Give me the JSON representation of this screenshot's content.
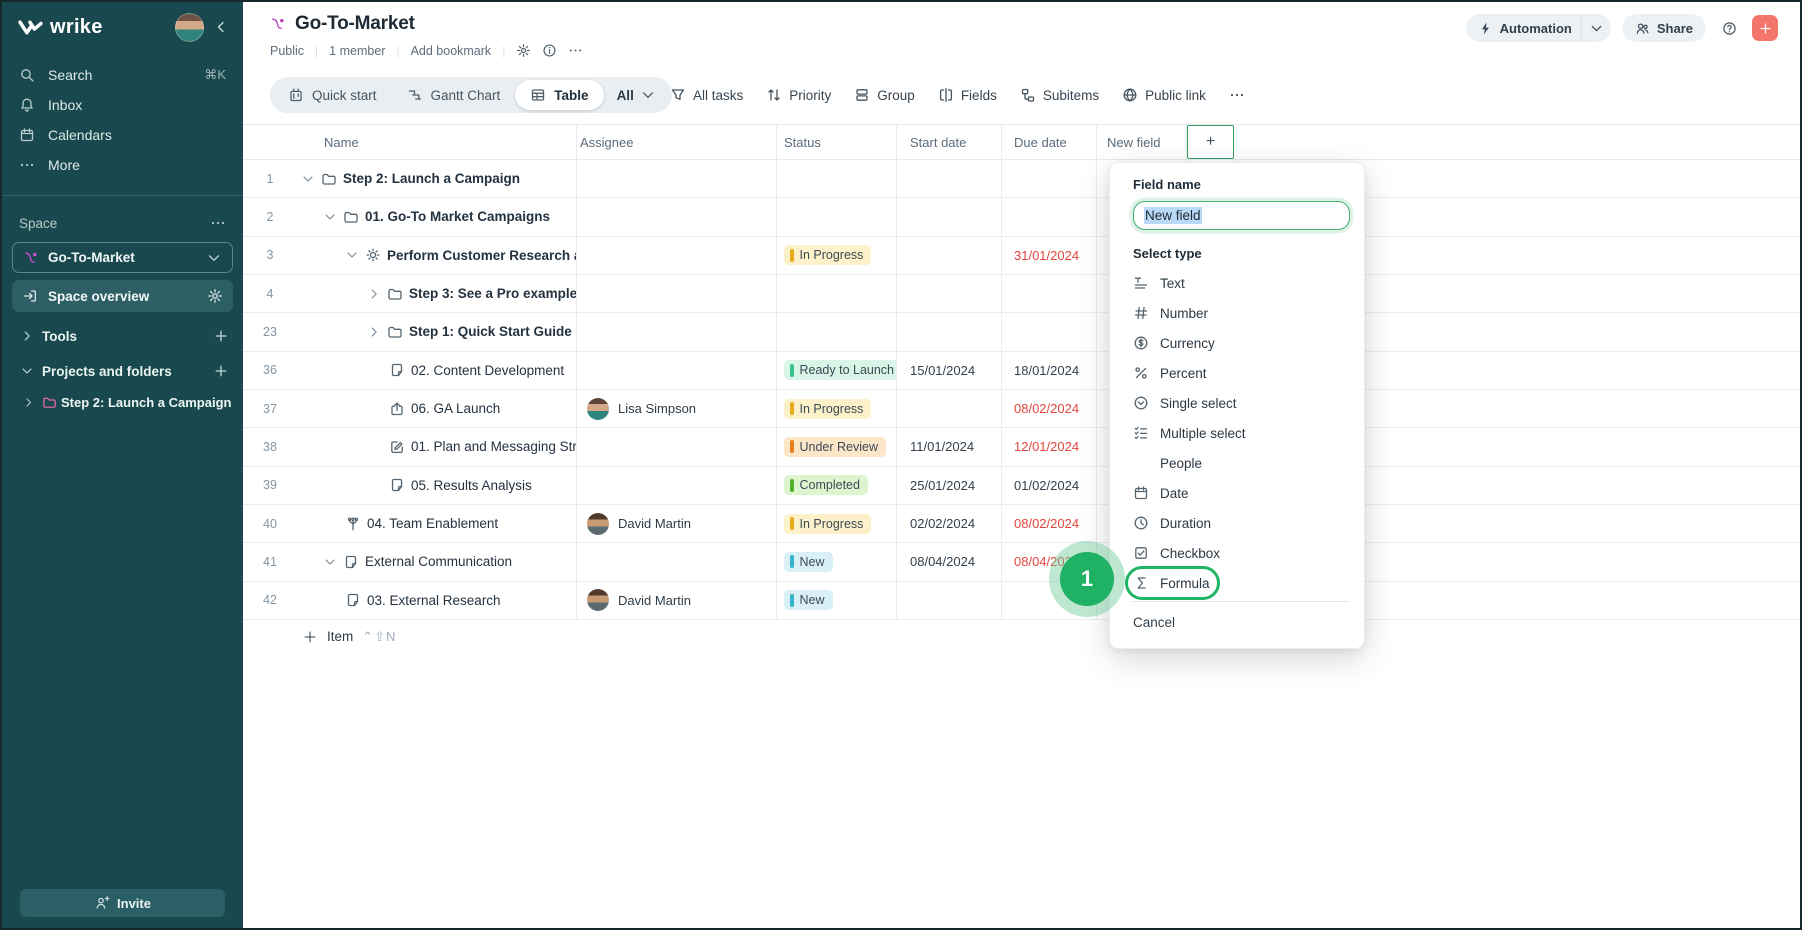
{
  "app": {
    "brand": "wrike",
    "collapse_icon": "chevL"
  },
  "sidebar": {
    "nav": [
      {
        "icon": "search",
        "label": "Search",
        "shortcut": "⌘K"
      },
      {
        "icon": "bell",
        "label": "Inbox",
        "shortcut": ""
      },
      {
        "icon": "calendar",
        "label": "Calendars",
        "shortcut": ""
      },
      {
        "icon": "dots",
        "label": "More",
        "shortcut": ""
      }
    ],
    "space_label": "Space",
    "space_name": "Go-To-Market",
    "overview_label": "Space overview",
    "tools_label": "Tools",
    "projects_label": "Projects and folders",
    "project_label": "Step 2: Launch a Campaign",
    "invite_label": "Invite"
  },
  "header": {
    "title": "Go-To-Market",
    "meta": [
      "Public",
      "1 member",
      "Add bookmark"
    ],
    "automation_label": "Automation",
    "share_label": "Share"
  },
  "toolbar": {
    "views": [
      {
        "icon": "board",
        "label": "Quick start",
        "selected": false
      },
      {
        "icon": "gantt",
        "label": "Gantt Chart",
        "selected": false
      },
      {
        "icon": "tablegrid",
        "label": "Table",
        "selected": true
      }
    ],
    "filter_selector": "All",
    "actions": [
      {
        "icon": "funnel",
        "label": "All tasks"
      },
      {
        "icon": "sort",
        "label": "Priority"
      },
      {
        "icon": "group",
        "label": "Group"
      },
      {
        "icon": "fields",
        "label": "Fields"
      },
      {
        "icon": "subitems",
        "label": "Subitems"
      },
      {
        "icon": "globe",
        "label": "Public link"
      },
      {
        "icon": "dots",
        "label": ""
      }
    ]
  },
  "table": {
    "columns": [
      "Name",
      "Assignee",
      "Status",
      "Start date",
      "Due date",
      "New field"
    ],
    "add_column_label": "+",
    "add_item_label": "Item",
    "add_item_shortcut": "⌃⇧N",
    "rows": [
      {
        "num": "1",
        "indent": 0,
        "chevron": "down",
        "icon": "folder",
        "name": "Step 2: Launch a Campaign",
        "bold": true,
        "assignee": "",
        "avatar": "",
        "status": "",
        "status_key": "",
        "start": "",
        "due": "",
        "due_overdue": false
      },
      {
        "num": "2",
        "indent": 1,
        "chevron": "down",
        "icon": "folder",
        "name": "01. Go-To Market Campaigns",
        "bold": true,
        "assignee": "",
        "avatar": "",
        "status": "",
        "status_key": "",
        "start": "",
        "due": "",
        "due_overdue": false
      },
      {
        "num": "3",
        "indent": 2,
        "chevron": "down",
        "icon": "sun",
        "name": "Perform Customer Research a",
        "bold": true,
        "assignee": "",
        "avatar": "",
        "status": "In Progress",
        "status_key": "in_progress",
        "start": "",
        "due": "31/01/2024",
        "due_overdue": true
      },
      {
        "num": "4",
        "indent": 3,
        "chevron": "right",
        "icon": "folder",
        "name": "Step 3: See a Pro example",
        "bold": true,
        "assignee": "",
        "avatar": "",
        "status": "",
        "status_key": "",
        "start": "",
        "due": "",
        "due_overdue": false
      },
      {
        "num": "23",
        "indent": 3,
        "chevron": "right",
        "icon": "folder",
        "name": "Step 1: Quick Start Guide",
        "bold": true,
        "assignee": "",
        "avatar": "",
        "status": "",
        "status_key": "",
        "start": "",
        "due": "",
        "due_overdue": false
      },
      {
        "num": "36",
        "indent": 4,
        "chevron": "",
        "icon": "task",
        "name": "02. Content Development",
        "bold": false,
        "assignee": "",
        "avatar": "",
        "status": "Ready to Launch",
        "status_key": "ready",
        "start": "15/01/2024",
        "due": "18/01/2024",
        "due_overdue": false
      },
      {
        "num": "37",
        "indent": 4,
        "chevron": "",
        "icon": "launch",
        "name": "06. GA Launch",
        "bold": false,
        "assignee": "Lisa Simpson",
        "avatar": "lisa",
        "status": "In Progress",
        "status_key": "in_progress",
        "start": "",
        "due": "08/02/2024",
        "due_overdue": true
      },
      {
        "num": "38",
        "indent": 4,
        "chevron": "",
        "icon": "edit",
        "name": "01. Plan and Messaging Str",
        "bold": false,
        "assignee": "",
        "avatar": "",
        "status": "Under Review",
        "status_key": "review",
        "start": "11/01/2024",
        "due": "12/01/2024",
        "due_overdue": true
      },
      {
        "num": "39",
        "indent": 4,
        "chevron": "",
        "icon": "task",
        "name": "05. Results Analysis",
        "bold": false,
        "assignee": "",
        "avatar": "",
        "status": "Completed",
        "status_key": "completed",
        "start": "25/01/2024",
        "due": "01/02/2024",
        "due_overdue": false
      },
      {
        "num": "40",
        "indent": 2,
        "chevron": "",
        "icon": "hierarchy",
        "name": "04. Team Enablement",
        "bold": false,
        "assignee": "David Martin",
        "avatar": "david",
        "status": "In Progress",
        "status_key": "in_progress",
        "start": "02/02/2024",
        "due": "08/02/2024",
        "due_overdue": true
      },
      {
        "num": "41",
        "indent": 1,
        "chevron": "down",
        "icon": "task",
        "name": "External Communication",
        "bold": false,
        "assignee": "",
        "avatar": "",
        "status": "New",
        "status_key": "new",
        "start": "08/04/2024",
        "due": "08/04/2024",
        "due_overdue": true
      },
      {
        "num": "42",
        "indent": 2,
        "chevron": "",
        "icon": "task",
        "name": "03. External Research",
        "bold": false,
        "assignee": "David Martin",
        "avatar": "david",
        "status": "New",
        "status_key": "new",
        "start": "",
        "due": "",
        "due_overdue": false
      }
    ]
  },
  "field_panel": {
    "title": "Field name",
    "input_value": "New field",
    "section": "Select type",
    "types": [
      {
        "icon": "text",
        "label": "Text",
        "highlighted": false
      },
      {
        "icon": "number",
        "label": "Number",
        "highlighted": false
      },
      {
        "icon": "currency",
        "label": "Currency",
        "highlighted": false
      },
      {
        "icon": "percent",
        "label": "Percent",
        "highlighted": false
      },
      {
        "icon": "single",
        "label": "Single select",
        "highlighted": false
      },
      {
        "icon": "multi",
        "label": "Multiple select",
        "highlighted": false
      },
      {
        "icon": "people",
        "label": "People",
        "highlighted": false
      },
      {
        "icon": "date",
        "label": "Date",
        "highlighted": false
      },
      {
        "icon": "duration",
        "label": "Duration",
        "highlighted": false
      },
      {
        "icon": "checkbox",
        "label": "Checkbox",
        "highlighted": false
      },
      {
        "icon": "formula",
        "label": "Formula",
        "highlighted": true
      }
    ],
    "cancel_label": "Cancel",
    "annotation": "1"
  },
  "colors": {
    "sidebar_bg": "#19494e",
    "accent_green": "#1fb564",
    "danger_red": "#e2453c",
    "brand_plus": "#f4756a",
    "space_icon": "#b83cb8",
    "status": {
      "in_progress": {
        "bg": "#fdf1c9",
        "bar": "#e7ac19"
      },
      "ready": {
        "bg": "#d8f5e7",
        "bar": "#37c28b"
      },
      "review": {
        "bg": "#fbe6c8",
        "bar": "#ea7c1c"
      },
      "completed": {
        "bg": "#def4cf",
        "bar": "#53b02c"
      },
      "new": {
        "bg": "#d9f1f6",
        "bar": "#35b5cd"
      }
    }
  }
}
